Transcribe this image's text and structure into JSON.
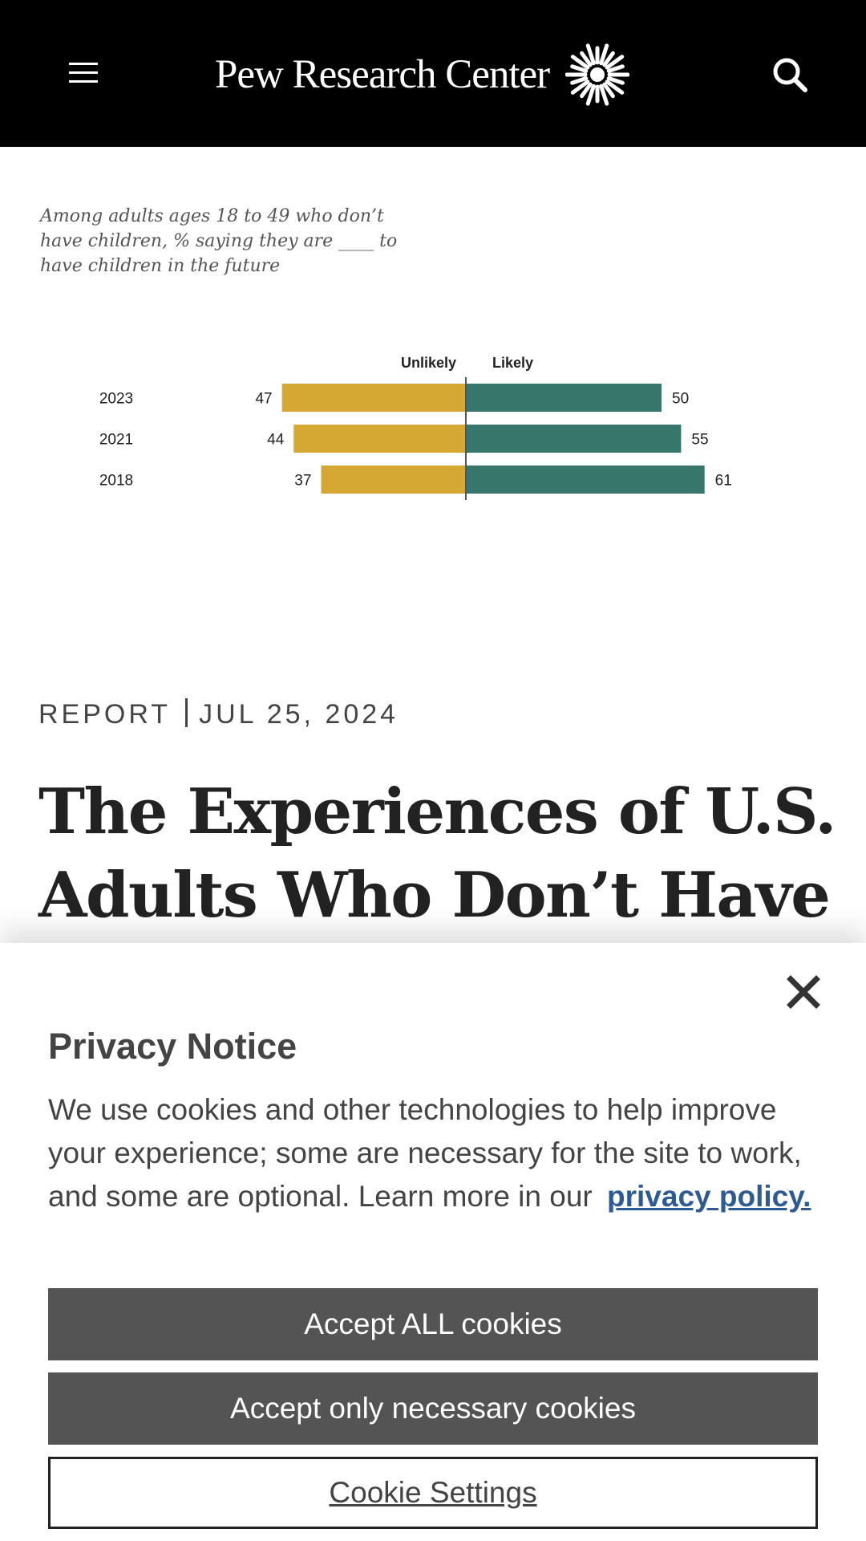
{
  "header": {
    "brand_name": "Pew Research Center",
    "menu_icon": "hamburger-menu-icon",
    "logo_icon": "sunburst-logo-icon",
    "search_icon": "search-icon",
    "background": "#000000"
  },
  "chart": {
    "subtitle": "Among adults ages 18 to 49 who don’t have children, % saying they are ____ to have children in the future"
  },
  "chart_data": {
    "type": "bar",
    "orientation": "diverging-horizontal",
    "categories": [
      "2023",
      "2021",
      "2018"
    ],
    "series": [
      {
        "name": "Unlikely",
        "values": [
          47,
          44,
          37
        ],
        "color": "#d4a832"
      },
      {
        "name": "Likely",
        "values": [
          50,
          55,
          61
        ],
        "color": "#37766a"
      }
    ],
    "title": "",
    "xlabel": "",
    "ylabel": "",
    "legend": "top-center",
    "grid": false
  },
  "article": {
    "type_label": "REPORT",
    "date": "JUL 25, 2024",
    "title": "The Experiences of U.S. Adults Who Don’t Have"
  },
  "privacy": {
    "title": "Privacy Notice",
    "body": "We use cookies and other technologies to help improve your experience; some are necessary for the site to work, and some are optional. Learn more in our",
    "link_text": "privacy policy.",
    "accept_all": "Accept ALL cookies",
    "accept_necessary": "Accept only necessary cookies",
    "settings": "Cookie Settings",
    "close_icon": "close-icon",
    "link_color": "#2f5b94",
    "button_color": "#545454"
  }
}
